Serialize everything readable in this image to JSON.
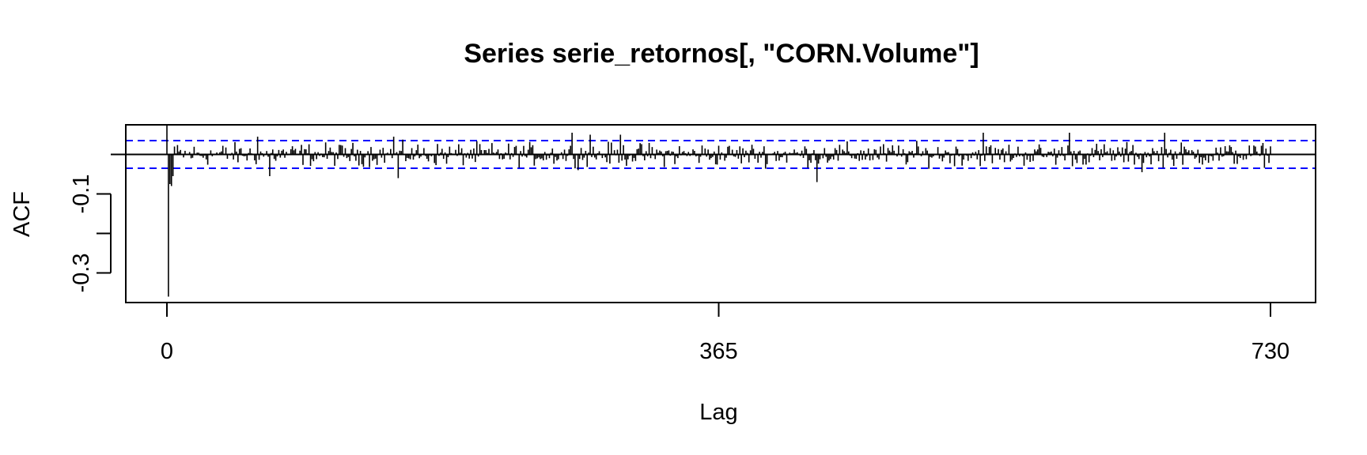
{
  "chart_data": {
    "type": "bar",
    "title": "Series  serie_retornos[, \"CORN.Volume\"]",
    "xlabel": "Lag",
    "ylabel": "ACF",
    "xlim": [
      0,
      730
    ],
    "ylim": [
      -0.37,
      0.07
    ],
    "x_ticks": [
      0,
      365,
      730
    ],
    "x_tick_labels": [
      "0",
      "365",
      "730"
    ],
    "y_ticks": [
      -0.3,
      -0.2,
      -0.1
    ],
    "y_tick_labels": [
      "-0.3",
      "",
      "-0.1"
    ],
    "confidence_bound": 0.035,
    "zero_line": true,
    "grid": false,
    "colors": {
      "bars": "#000000",
      "bounds": "#0000ff",
      "frame": "#000000"
    },
    "notable_lags": [
      {
        "lag": 0,
        "acf": 1.0
      },
      {
        "lag": 1,
        "acf": -0.36
      },
      {
        "lag": 2,
        "acf": -0.075
      },
      {
        "lag": 3,
        "acf": -0.08
      },
      {
        "lag": 4,
        "acf": -0.055
      },
      {
        "lag": 5,
        "acf": 0.02
      },
      {
        "lag": 60,
        "acf": 0.045
      },
      {
        "lag": 68,
        "acf": -0.055
      },
      {
        "lag": 150,
        "acf": 0.045
      },
      {
        "lag": 153,
        "acf": -0.06
      },
      {
        "lag": 268,
        "acf": 0.055
      },
      {
        "lag": 280,
        "acf": 0.05
      },
      {
        "lag": 300,
        "acf": 0.05
      },
      {
        "lag": 430,
        "acf": -0.07
      },
      {
        "lag": 540,
        "acf": 0.055
      },
      {
        "lag": 597,
        "acf": 0.055
      },
      {
        "lag": 660,
        "acf": 0.055
      },
      {
        "lag": 645,
        "acf": -0.045
      }
    ],
    "lags": [
      0,
      730
    ],
    "acf": []
  }
}
